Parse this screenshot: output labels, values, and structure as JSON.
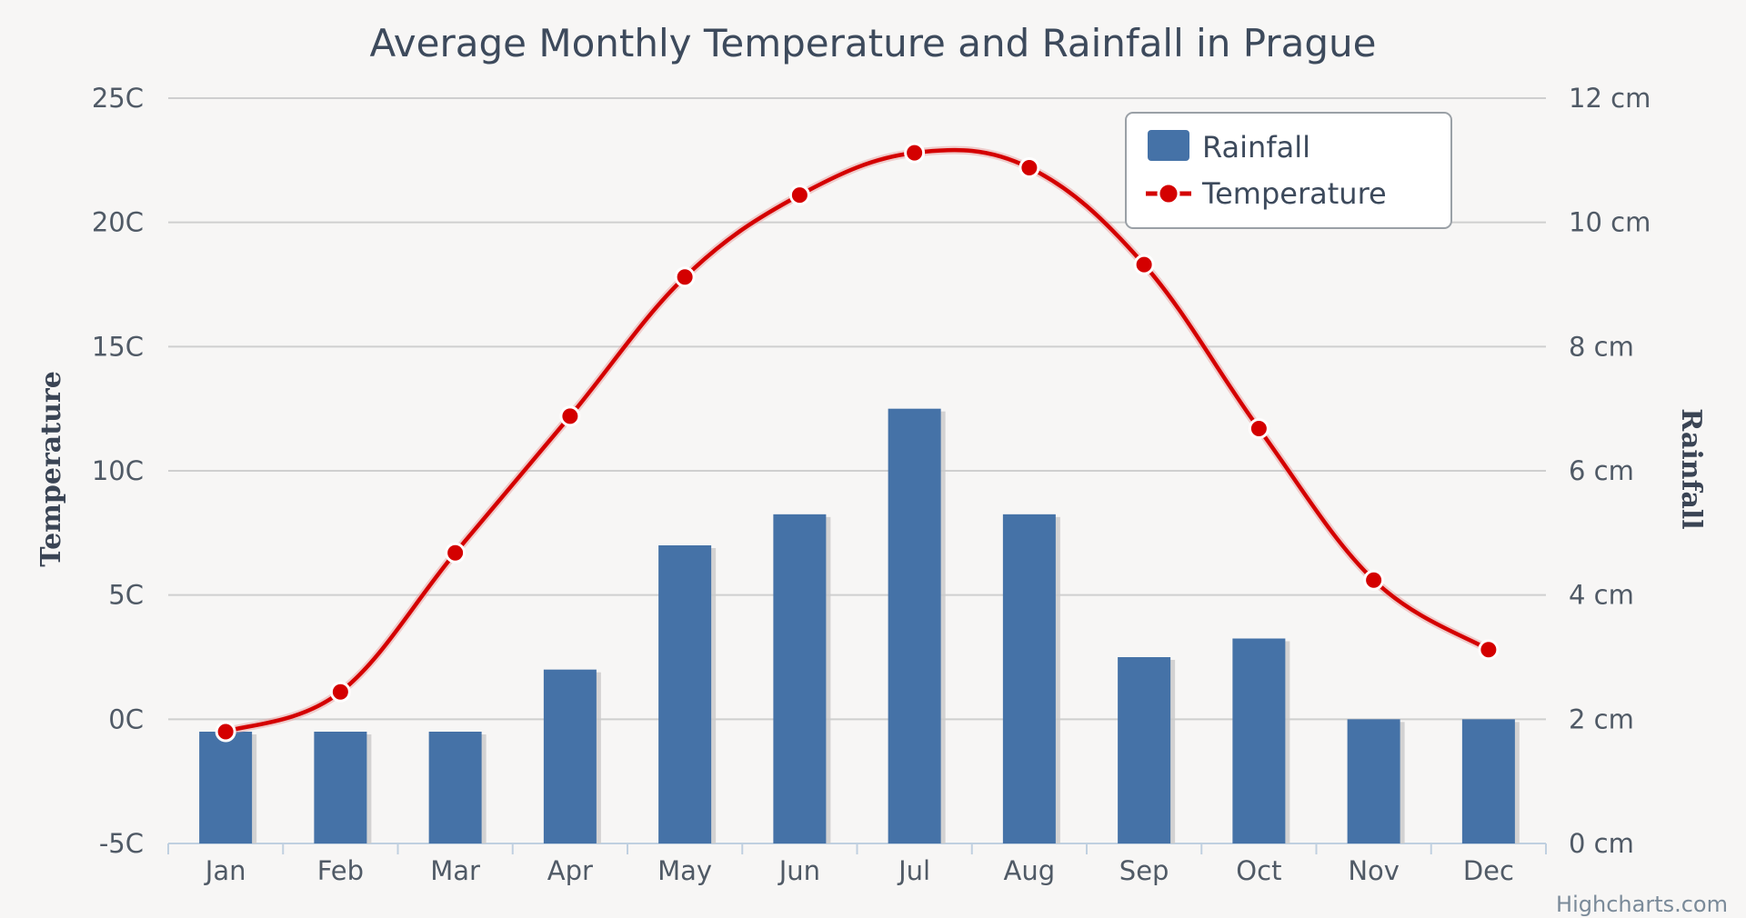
{
  "chart_data": {
    "type": "bar-line",
    "title": "Average Monthly Temperature and Rainfall in Prague",
    "categories": [
      "Jan",
      "Feb",
      "Mar",
      "Apr",
      "May",
      "Jun",
      "Jul",
      "Aug",
      "Sep",
      "Oct",
      "Nov",
      "Dec"
    ],
    "series": [
      {
        "name": "Rainfall",
        "type": "bar",
        "axis": "right",
        "unit": "cm",
        "values": [
          1.8,
          1.8,
          1.8,
          2.8,
          4.8,
          5.3,
          7.0,
          5.3,
          3.0,
          3.3,
          2.0,
          2.0
        ]
      },
      {
        "name": "Temperature",
        "type": "line",
        "axis": "left",
        "unit": "C",
        "values": [
          -0.5,
          1.1,
          6.7,
          12.2,
          17.8,
          21.1,
          22.8,
          22.2,
          18.3,
          11.7,
          5.6,
          2.8
        ]
      }
    ],
    "y_left": {
      "label": "Temperature",
      "min": -5,
      "max": 25,
      "ticks": [
        "25C",
        "20C",
        "15C",
        "10C",
        "5C",
        "0C",
        "-5C"
      ]
    },
    "y_right": {
      "label": "Rainfall",
      "min": 0,
      "max": 12,
      "ticks": [
        "12 cm",
        "10 cm",
        "8 cm",
        "6 cm",
        "4 cm",
        "2 cm",
        "0 cm"
      ]
    },
    "legend": {
      "position": "top-right",
      "items": [
        "Rainfall",
        "Temperature"
      ]
    },
    "credit": "Highcharts.com"
  },
  "colors": {
    "bar": "#4572a7",
    "line": "#d40000",
    "marker_stroke": "#ffffff",
    "grid": "#cfcfcf",
    "background": "#f7f6f5"
  }
}
